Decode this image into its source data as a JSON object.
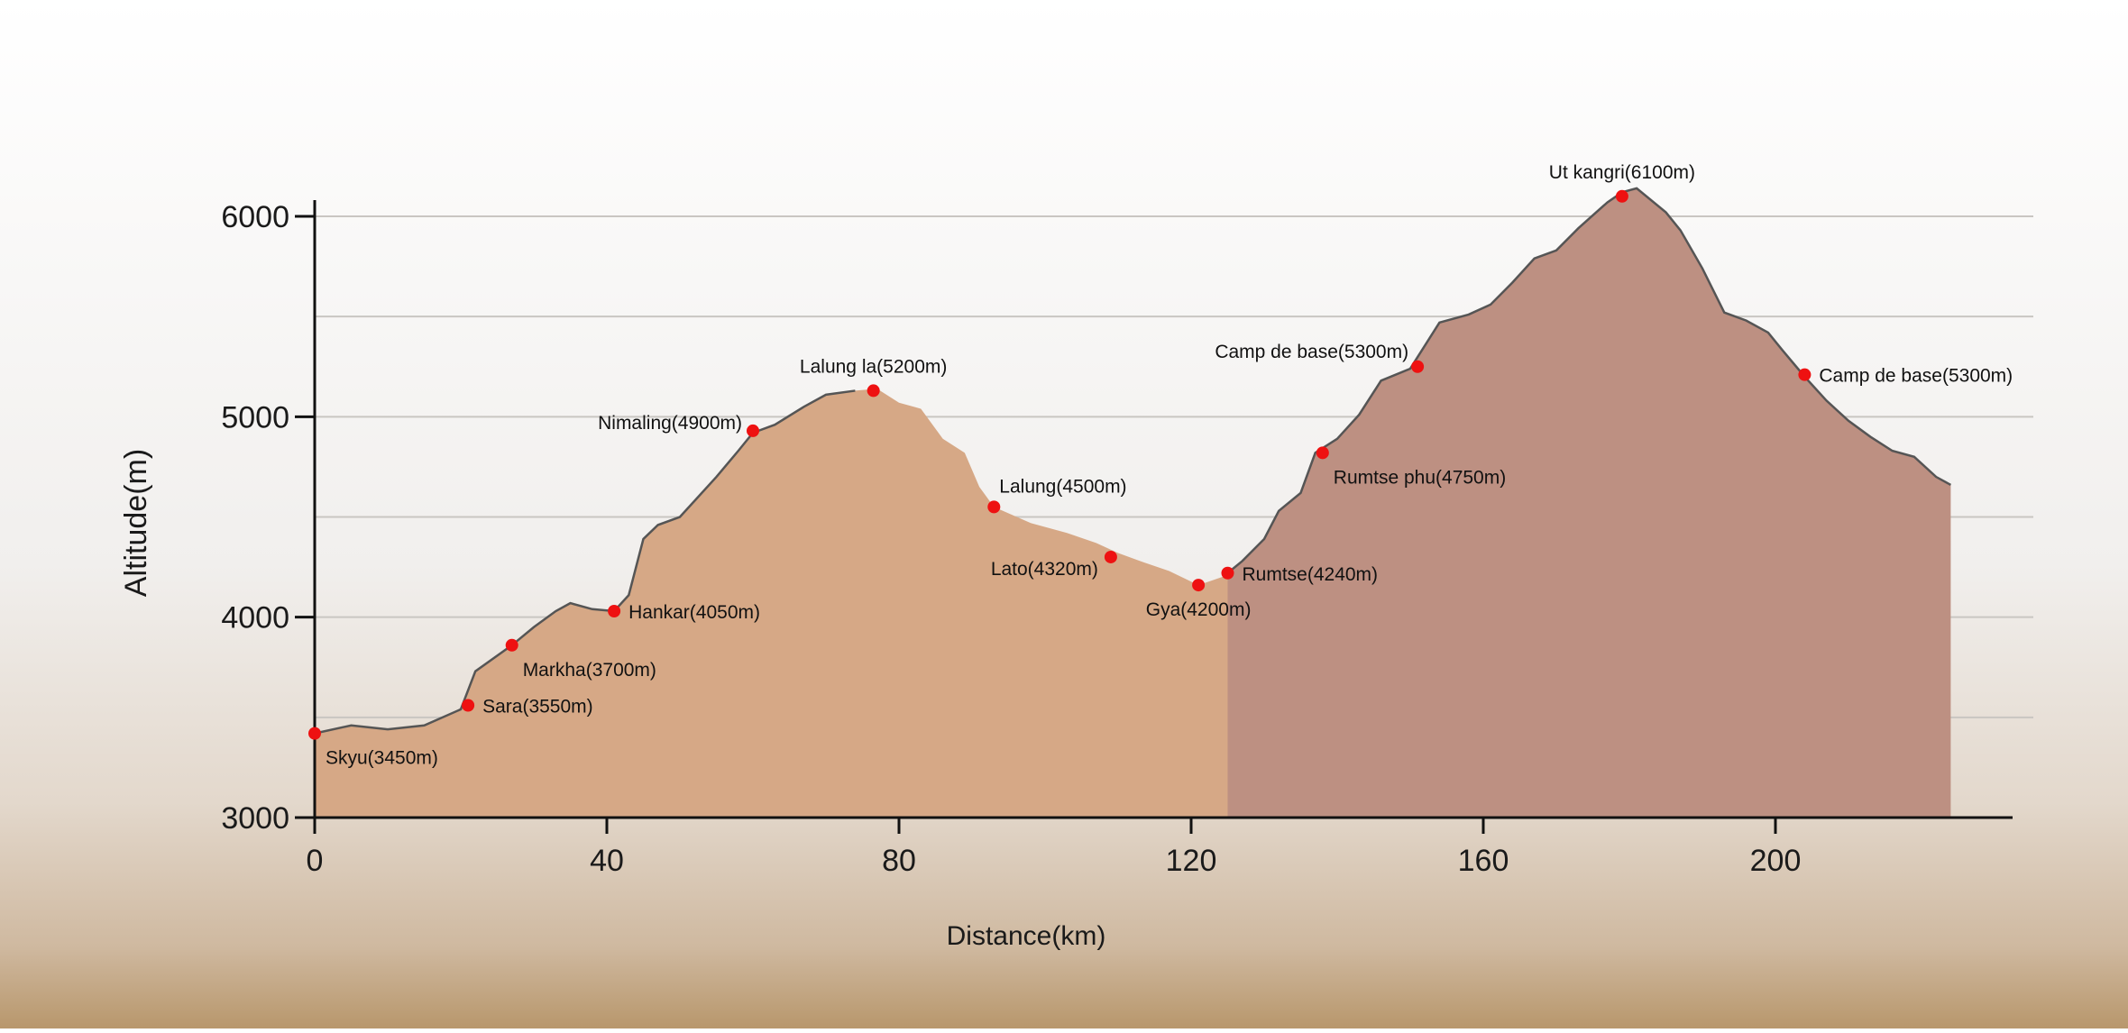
{
  "chart_data": {
    "type": "area",
    "title": "",
    "xlabel": "Distance(km)",
    "ylabel": "Altitude(m)",
    "xlim": [
      0,
      230
    ],
    "ylim": [
      3000,
      6000
    ],
    "x_ticks": [
      0,
      40,
      80,
      120,
      160,
      200
    ],
    "y_ticks": [
      3000,
      4000,
      5000,
      6000
    ],
    "grid": true,
    "colors": {
      "trek_fill": "#d6a886",
      "summit_fill": "#bd9082",
      "profile_line": "#555555",
      "waypoint": "#ee1111",
      "axis": "#111111",
      "grid": "#c9c6c2"
    },
    "trek_profile": [
      [
        0,
        3420
      ],
      [
        5,
        3460
      ],
      [
        10,
        3440
      ],
      [
        15,
        3460
      ],
      [
        20,
        3540
      ],
      [
        22,
        3730
      ],
      [
        27,
        3860
      ],
      [
        30,
        3950
      ],
      [
        33,
        4030
      ],
      [
        35,
        4070
      ],
      [
        38,
        4040
      ],
      [
        41,
        4030
      ],
      [
        43,
        4110
      ],
      [
        45,
        4390
      ],
      [
        47,
        4460
      ],
      [
        50,
        4500
      ],
      [
        55,
        4700
      ],
      [
        58,
        4830
      ],
      [
        60,
        4920
      ],
      [
        63,
        4960
      ],
      [
        67,
        5050
      ],
      [
        70,
        5110
      ],
      [
        74,
        5130
      ],
      [
        77,
        5140
      ],
      [
        80,
        5070
      ],
      [
        83,
        5040
      ],
      [
        86,
        4890
      ],
      [
        89,
        4820
      ],
      [
        91,
        4650
      ],
      [
        93,
        4550
      ],
      [
        98,
        4470
      ],
      [
        103,
        4420
      ],
      [
        107,
        4370
      ],
      [
        110,
        4320
      ],
      [
        113,
        4280
      ],
      [
        117,
        4230
      ],
      [
        121,
        4160
      ],
      [
        125,
        4210
      ],
      [
        128,
        4190
      ],
      [
        131,
        4060
      ],
      [
        134,
        3930
      ],
      [
        137,
        3750
      ],
      [
        141,
        3660
      ],
      [
        146,
        3530
      ],
      [
        152,
        3400
      ],
      [
        156,
        3250
      ],
      [
        160,
        3140
      ],
      [
        164,
        3060
      ],
      [
        164,
        3000
      ]
    ],
    "summit_profile": [
      [
        125,
        4220
      ],
      [
        127,
        4280
      ],
      [
        130,
        4390
      ],
      [
        132,
        4530
      ],
      [
        135,
        4620
      ],
      [
        137,
        4820
      ],
      [
        140,
        4890
      ],
      [
        143,
        5010
      ],
      [
        146,
        5180
      ],
      [
        150,
        5240
      ],
      [
        154,
        5470
      ],
      [
        158,
        5510
      ],
      [
        161,
        5560
      ],
      [
        164,
        5670
      ],
      [
        167,
        5790
      ],
      [
        170,
        5830
      ],
      [
        173,
        5940
      ],
      [
        177,
        6070
      ],
      [
        179,
        6120
      ],
      [
        181,
        6140
      ],
      [
        185,
        6020
      ],
      [
        187,
        5930
      ],
      [
        190,
        5740
      ],
      [
        193,
        5520
      ],
      [
        196,
        5480
      ],
      [
        199,
        5420
      ],
      [
        201,
        5330
      ],
      [
        204,
        5200
      ],
      [
        207,
        5080
      ],
      [
        210,
        4980
      ],
      [
        213,
        4900
      ],
      [
        216,
        4830
      ],
      [
        219,
        4800
      ],
      [
        222,
        4700
      ],
      [
        224,
        4660
      ],
      [
        224,
        3000
      ]
    ],
    "waypoints": [
      {
        "name": "Skyu(3450m)",
        "x": 0,
        "y": 3420,
        "label_pos": "below-right"
      },
      {
        "name": "Sara(3550m)",
        "x": 21,
        "y": 3560,
        "label_pos": "right"
      },
      {
        "name": "Markha(3700m)",
        "x": 27,
        "y": 3860,
        "label_pos": "below-right"
      },
      {
        "name": "Hankar(4050m)",
        "x": 41,
        "y": 4030,
        "label_pos": "right"
      },
      {
        "name": "Nimaling(4900m)",
        "x": 60,
        "y": 4930,
        "label_pos": "left"
      },
      {
        "name": "Lalung la(5200m)",
        "x": 76.5,
        "y": 5130,
        "label_pos": "above"
      },
      {
        "name": "Lalung(4500m)",
        "x": 93,
        "y": 4550,
        "label_pos": "above-right"
      },
      {
        "name": "Lato(4320m)",
        "x": 109,
        "y": 4300,
        "label_pos": "below-left"
      },
      {
        "name": "Gya(4200m)",
        "x": 121,
        "y": 4160,
        "label_pos": "below"
      },
      {
        "name": "Rumtse(4240m)",
        "x": 125,
        "y": 4220,
        "label_pos": "right"
      },
      {
        "name": "Rumtse phu(4750m)",
        "x": 138,
        "y": 4820,
        "label_pos": "below-right"
      },
      {
        "name": "Camp de base(5300m)",
        "x": 151,
        "y": 5250,
        "label_pos": "above-left"
      },
      {
        "name": "Ut kangri(6100m)",
        "x": 179,
        "y": 6100,
        "label_pos": "above"
      },
      {
        "name": "Camp de base(5300m)",
        "x": 204,
        "y": 5210,
        "label_pos": "right"
      }
    ]
  }
}
